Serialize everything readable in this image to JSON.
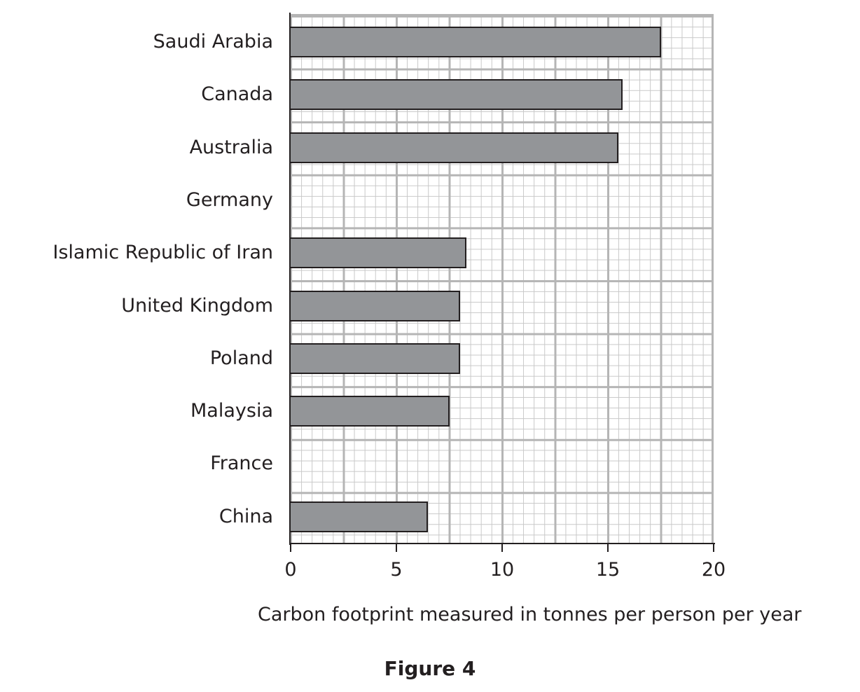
{
  "chart_data": {
    "type": "bar",
    "orientation": "horizontal",
    "title": "Figure 4",
    "xlabel": "Carbon footprint measured in tonnes per person per year",
    "ylabel": "",
    "xlim": [
      0,
      20
    ],
    "x_ticks": [
      "0",
      "5",
      "10",
      "15",
      "20"
    ],
    "grid": true,
    "categories": [
      "Saudi Arabia",
      "Canada",
      "Australia",
      "Germany",
      "Islamic Republic of Iran",
      "United Kingdom",
      "Poland",
      "Malaysia",
      "France",
      "China"
    ],
    "values": [
      17.5,
      15.7,
      15.5,
      null,
      8.3,
      8.0,
      8.0,
      7.5,
      null,
      6.5
    ],
    "bar_color": "#939598",
    "notes": "Germany and France bars are blank (not drawn)"
  },
  "caption": "Figure 4"
}
